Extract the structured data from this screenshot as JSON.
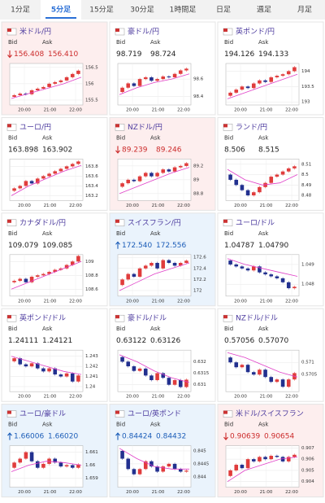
{
  "tabs": [
    "1分足",
    "5分足",
    "15分足",
    "30分足",
    "1時間足",
    "日足",
    "週足",
    "月足"
  ],
  "active_tab": 1,
  "bid_label": "Bid",
  "ask_label": "Ask",
  "time_labels": [
    "20:00",
    "21:00",
    "22:00"
  ],
  "cards": [
    {
      "name": "米ドル/円",
      "bid": "156.408",
      "ask": "156.410",
      "direction": "down",
      "ylim": [
        155.35,
        156.62
      ],
      "yticks": [
        156.5,
        156,
        155.5
      ],
      "closes": [
        155.6,
        155.65,
        155.7,
        155.68,
        155.8,
        155.85,
        155.9,
        156.0,
        156.05,
        156.1,
        156.2,
        156.3,
        156.4
      ],
      "ma": [
        155.55,
        155.7,
        155.85,
        156.0,
        156.2
      ]
    },
    {
      "name": "豪ドル/円",
      "bid": "98.719",
      "ask": "98.724",
      "direction": null,
      "ylim": [
        98.3,
        98.78
      ],
      "yticks": [
        98.6,
        98.4
      ],
      "closes": [
        98.45,
        98.5,
        98.55,
        98.52,
        98.6,
        98.62,
        98.58,
        98.6,
        98.63,
        98.62,
        98.66,
        98.7,
        98.72
      ],
      "ma": [
        98.42,
        98.5,
        98.56,
        98.6,
        98.66
      ]
    },
    {
      "name": "英ポンド/円",
      "bid": "194.126",
      "ask": "194.133",
      "direction": null,
      "ylim": [
        192.9,
        194.25
      ],
      "yticks": [
        194,
        193.5,
        193
      ],
      "closes": [
        193.2,
        193.3,
        193.4,
        193.5,
        193.45,
        193.6,
        193.7,
        193.65,
        193.8,
        193.85,
        193.9,
        194.0,
        194.13
      ],
      "ma": [
        193.1,
        193.3,
        193.5,
        193.7,
        193.9
      ]
    },
    {
      "name": "ユーロ/円",
      "bid": "163.898",
      "ask": "163.902",
      "direction": null,
      "ylim": [
        163.1,
        163.95
      ],
      "yticks": [
        163.8,
        163.6,
        163.4,
        163.2
      ],
      "closes": [
        163.3,
        163.35,
        163.4,
        163.5,
        163.45,
        163.55,
        163.6,
        163.65,
        163.7,
        163.75,
        163.8,
        163.85,
        163.9
      ],
      "ma": [
        163.2,
        163.4,
        163.55,
        163.7,
        163.82
      ]
    },
    {
      "name": "NZドル/円",
      "bid": "89.239",
      "ask": "89.246",
      "direction": "down",
      "ylim": [
        88.7,
        89.3
      ],
      "yticks": [
        89.2,
        89,
        88.8
      ],
      "closes": [
        88.9,
        88.95,
        89.0,
        88.98,
        89.05,
        89.1,
        89.05,
        89.1,
        89.15,
        89.12,
        89.18,
        89.2,
        89.24
      ],
      "ma": [
        88.8,
        88.9,
        89.0,
        89.1,
        89.18
      ]
    },
    {
      "name": "ランド/円",
      "bid": "8.506",
      "ask": "8.515",
      "direction": null,
      "ylim": [
        8.475,
        8.515
      ],
      "yticks": [
        8.51,
        8.5,
        8.49,
        8.48
      ],
      "closes": [
        8.5,
        8.495,
        8.49,
        8.485,
        8.48,
        8.483,
        8.488,
        8.492,
        8.498,
        8.5,
        8.503,
        8.506,
        8.508
      ],
      "ma": [
        8.505,
        8.495,
        8.49,
        8.492,
        8.5
      ]
    },
    {
      "name": "カナダドル/円",
      "bid": "109.079",
      "ask": "109.085",
      "direction": null,
      "ylim": [
        108.5,
        109.1
      ],
      "yticks": [
        109,
        108.8,
        108.6
      ],
      "closes": [
        108.7,
        108.72,
        108.75,
        108.7,
        108.78,
        108.8,
        108.82,
        108.85,
        108.88,
        108.9,
        108.95,
        109.0,
        109.08
      ],
      "ma": [
        108.6,
        108.7,
        108.8,
        108.9,
        109.0
      ]
    },
    {
      "name": "スイスフラン/円",
      "bid": "172.540",
      "ask": "172.556",
      "direction": "up",
      "ylim": [
        171.9,
        172.65
      ],
      "yticks": [
        172.6,
        172.4,
        172.2,
        172
      ],
      "closes": [
        172.1,
        172.2,
        172.3,
        172.25,
        172.4,
        172.45,
        172.5,
        172.4,
        172.55,
        172.5,
        172.45,
        172.5,
        172.54
      ],
      "ma": [
        172.0,
        172.15,
        172.3,
        172.4,
        172.5
      ]
    },
    {
      "name": "ユーロ/ドル",
      "bid": "1.04787",
      "ask": "1.04790",
      "direction": null,
      "ylim": [
        1.0474,
        1.0495
      ],
      "yticks": [
        1.049,
        1.048
      ],
      "closes": [
        1.0492,
        1.049,
        1.0489,
        1.0488,
        1.0487,
        1.0489,
        1.0486,
        1.0485,
        1.0484,
        1.0483,
        1.0481,
        1.0478,
        1.04787
      ],
      "ma": [
        1.0493,
        1.049,
        1.0488,
        1.0486,
        1.0484
      ]
    },
    {
      "name": "英ポンド/ドル",
      "bid": "1.24111",
      "ask": "1.24121",
      "direction": null,
      "ylim": [
        1.2395,
        1.2436
      ],
      "yticks": [
        1.243,
        1.242,
        1.241,
        1.24
      ],
      "closes": [
        1.2425,
        1.2428,
        1.2422,
        1.242,
        1.2423,
        1.2418,
        1.2415,
        1.2418,
        1.2412,
        1.241,
        1.2413,
        1.2405,
        1.2411
      ],
      "ma": [
        1.243,
        1.2425,
        1.242,
        1.2415,
        1.2412
      ]
    },
    {
      "name": "豪ドル/ドル",
      "bid": "0.63122",
      "ask": "0.63126",
      "direction": null,
      "ylim": [
        0.6307,
        0.6325
      ],
      "yticks": [
        0.632,
        0.6315,
        0.631
      ],
      "closes": [
        0.6322,
        0.632,
        0.6318,
        0.6316,
        0.6317,
        0.6314,
        0.6312,
        0.6315,
        0.6313,
        0.631,
        0.6312,
        0.6309,
        0.63122
      ],
      "ma": [
        0.6323,
        0.632,
        0.6316,
        0.6313,
        0.6311
      ]
    },
    {
      "name": "NZドル/ドル",
      "bid": "0.57056",
      "ask": "0.57070",
      "direction": null,
      "ylim": [
        0.5698,
        0.5715
      ],
      "yticks": [
        0.571,
        0.5705
      ],
      "closes": [
        0.5712,
        0.571,
        0.5708,
        0.5709,
        0.5706,
        0.5705,
        0.5707,
        0.5704,
        0.5702,
        0.5703,
        0.57,
        0.5703,
        0.57056
      ],
      "ma": [
        0.5714,
        0.5712,
        0.5709,
        0.5706,
        0.5704
      ]
    },
    {
      "name": "ユーロ/豪ドル",
      "bid": "1.66006",
      "ask": "1.66020",
      "direction": "up",
      "ylim": [
        1.6583,
        1.6615
      ],
      "yticks": [
        1.661,
        1.66,
        1.659
      ],
      "closes": [
        1.6598,
        1.6602,
        1.6605,
        1.661,
        1.6603,
        1.6598,
        1.6601,
        1.6605,
        1.6602,
        1.6599,
        1.66,
        1.6598,
        1.66006
      ],
      "ma": [
        1.6595,
        1.66,
        1.6603,
        1.6602,
        1.66
      ]
    },
    {
      "name": "ユーロ/英ポンド",
      "bid": "0.84424",
      "ask": "0.84432",
      "direction": "up",
      "ylim": [
        0.8436,
        0.8452
      ],
      "yticks": [
        0.845,
        0.8445,
        0.844
      ],
      "closes": [
        0.845,
        0.8447,
        0.8443,
        0.8441,
        0.8443,
        0.8446,
        0.8444,
        0.8442,
        0.8444,
        0.8445,
        0.8443,
        0.8442,
        0.84424
      ],
      "ma": [
        0.8451,
        0.8447,
        0.8444,
        0.8443,
        0.8443
      ]
    },
    {
      "name": "米ドル/スイスフラン",
      "bid": "0.90639",
      "ask": "0.90654",
      "direction": "down",
      "ylim": [
        0.9035,
        0.9072
      ],
      "yticks": [
        0.907,
        0.906,
        0.905,
        0.904
      ],
      "closes": [
        0.9045,
        0.905,
        0.9055,
        0.9052,
        0.906,
        0.9058,
        0.9062,
        0.906,
        0.9063,
        0.9062,
        0.9058,
        0.9062,
        0.90639
      ],
      "ma": [
        0.904,
        0.905,
        0.9055,
        0.906,
        0.9062
      ]
    }
  ]
}
